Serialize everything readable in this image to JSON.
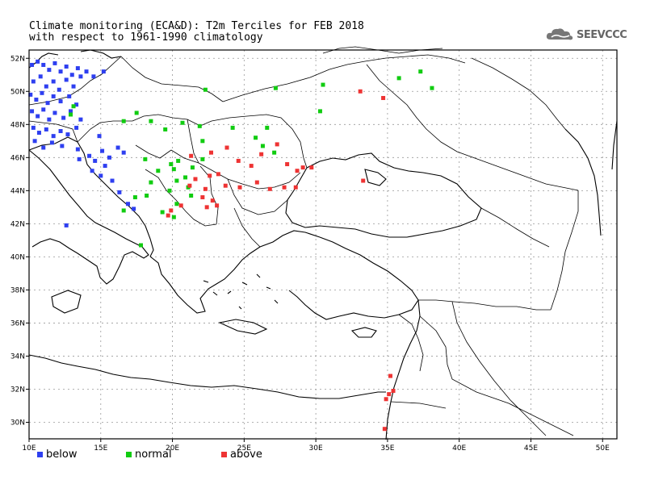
{
  "header": {
    "title_line1": "Climate monitoring (ECA&D): T2m Terciles for FEB 2018",
    "title_line2": "with respect to 1961-1990 climatology",
    "logo_text": "SEEVCCC",
    "logo_icon": "cloud-icon"
  },
  "axes": {
    "x_ticks": [
      "10E",
      "15E",
      "20E",
      "25E",
      "30E",
      "35E",
      "40E",
      "45E",
      "50E"
    ],
    "y_ticks": [
      "52N",
      "50N",
      "48N",
      "46N",
      "44N",
      "42N",
      "40N",
      "38N",
      "36N",
      "34N",
      "32N",
      "30N"
    ],
    "lon_range": [
      10,
      51
    ],
    "lat_range": [
      29,
      52.5
    ]
  },
  "legend": [
    {
      "label": "below",
      "color": "#2e3ff0"
    },
    {
      "label": "normal",
      "color": "#11cc11"
    },
    {
      "label": "above",
      "color": "#ee3333"
    }
  ],
  "chart_data": {
    "type": "map",
    "stations": {
      "below": [
        [
          10.2,
          51.6
        ],
        [
          10.6,
          51.8
        ],
        [
          11.0,
          51.6
        ],
        [
          11.4,
          51.3
        ],
        [
          11.8,
          51.7
        ],
        [
          12.2,
          51.2
        ],
        [
          12.6,
          51.5
        ],
        [
          13.0,
          51.0
        ],
        [
          13.4,
          51.4
        ],
        [
          14.0,
          51.2
        ],
        [
          14.5,
          50.9
        ],
        [
          15.2,
          51.2
        ],
        [
          10.3,
          50.6
        ],
        [
          10.8,
          50.9
        ],
        [
          11.2,
          50.3
        ],
        [
          11.7,
          50.6
        ],
        [
          12.1,
          50.1
        ],
        [
          12.6,
          50.7
        ],
        [
          13.1,
          50.3
        ],
        [
          13.6,
          50.9
        ],
        [
          10.1,
          49.8
        ],
        [
          10.5,
          49.5
        ],
        [
          10.9,
          49.9
        ],
        [
          11.3,
          49.3
        ],
        [
          11.7,
          49.7
        ],
        [
          12.2,
          49.4
        ],
        [
          12.8,
          49.7
        ],
        [
          13.3,
          49.2
        ],
        [
          10.2,
          48.8
        ],
        [
          10.6,
          48.5
        ],
        [
          11.0,
          48.9
        ],
        [
          11.4,
          48.3
        ],
        [
          11.8,
          48.7
        ],
        [
          12.4,
          48.4
        ],
        [
          12.9,
          48.8
        ],
        [
          13.6,
          48.3
        ],
        [
          10.3,
          47.8
        ],
        [
          10.7,
          47.5
        ],
        [
          11.2,
          47.7
        ],
        [
          11.7,
          47.3
        ],
        [
          12.2,
          47.6
        ],
        [
          12.7,
          47.4
        ],
        [
          13.3,
          47.8
        ],
        [
          10.4,
          47.0
        ],
        [
          11.0,
          46.6
        ],
        [
          11.6,
          46.9
        ],
        [
          12.3,
          46.7
        ],
        [
          14.2,
          46.1
        ],
        [
          14.6,
          45.8
        ],
        [
          15.1,
          46.4
        ],
        [
          15.6,
          46.0
        ],
        [
          16.2,
          46.6
        ],
        [
          16.6,
          46.3
        ],
        [
          15.3,
          45.5
        ],
        [
          14.4,
          45.2
        ],
        [
          15.0,
          44.9
        ],
        [
          15.8,
          44.6
        ],
        [
          16.3,
          43.9
        ],
        [
          16.9,
          43.2
        ],
        [
          17.3,
          42.9
        ],
        [
          13.5,
          45.9
        ],
        [
          12.6,
          41.9
        ],
        [
          14.9,
          47.3
        ],
        [
          13.4,
          46.5
        ]
      ],
      "normal": [
        [
          12.9,
          48.6
        ],
        [
          13.1,
          49.1
        ],
        [
          16.6,
          48.2
        ],
        [
          17.5,
          48.7
        ],
        [
          18.5,
          48.2
        ],
        [
          19.5,
          47.7
        ],
        [
          20.7,
          48.1
        ],
        [
          21.9,
          47.9
        ],
        [
          22.1,
          47.0
        ],
        [
          24.2,
          47.8
        ],
        [
          25.8,
          47.2
        ],
        [
          26.6,
          47.8
        ],
        [
          26.3,
          46.7
        ],
        [
          27.1,
          46.3
        ],
        [
          22.3,
          50.1
        ],
        [
          27.2,
          50.2
        ],
        [
          30.5,
          50.4
        ],
        [
          30.3,
          48.8
        ],
        [
          35.8,
          50.8
        ],
        [
          37.3,
          51.2
        ],
        [
          38.1,
          50.2
        ],
        [
          18.1,
          45.9
        ],
        [
          19.0,
          45.2
        ],
        [
          19.9,
          45.6
        ],
        [
          20.4,
          45.8
        ],
        [
          21.4,
          45.4
        ],
        [
          22.1,
          45.9
        ],
        [
          20.1,
          45.3
        ],
        [
          20.9,
          44.8
        ],
        [
          21.1,
          44.2
        ],
        [
          20.3,
          44.6
        ],
        [
          19.8,
          44.0
        ],
        [
          18.5,
          44.5
        ],
        [
          17.4,
          43.6
        ],
        [
          18.2,
          43.7
        ],
        [
          19.3,
          42.7
        ],
        [
          20.1,
          42.4
        ],
        [
          20.3,
          43.2
        ],
        [
          16.6,
          42.8
        ],
        [
          17.8,
          40.7
        ],
        [
          21.3,
          43.7
        ]
      ],
      "above": [
        [
          33.1,
          50.0
        ],
        [
          34.7,
          49.6
        ],
        [
          21.3,
          46.1
        ],
        [
          22.7,
          46.3
        ],
        [
          23.8,
          46.6
        ],
        [
          24.6,
          45.8
        ],
        [
          25.5,
          45.5
        ],
        [
          26.2,
          46.2
        ],
        [
          27.3,
          46.8
        ],
        [
          28.0,
          45.6
        ],
        [
          28.7,
          45.2
        ],
        [
          29.1,
          45.4
        ],
        [
          25.9,
          44.5
        ],
        [
          27.8,
          44.2
        ],
        [
          28.6,
          44.2
        ],
        [
          21.6,
          44.7
        ],
        [
          22.6,
          44.9
        ],
        [
          23.2,
          45.0
        ],
        [
          23.7,
          44.3
        ],
        [
          24.7,
          44.2
        ],
        [
          26.8,
          44.1
        ],
        [
          21.2,
          44.3
        ],
        [
          22.3,
          44.1
        ],
        [
          22.1,
          43.6
        ],
        [
          22.8,
          43.4
        ],
        [
          23.1,
          43.1
        ],
        [
          22.4,
          43.0
        ],
        [
          20.6,
          43.1
        ],
        [
          19.7,
          42.5
        ],
        [
          19.9,
          42.8
        ],
        [
          29.7,
          45.4
        ],
        [
          33.3,
          44.6
        ],
        [
          35.2,
          32.8
        ],
        [
          35.4,
          31.9
        ],
        [
          35.1,
          31.7
        ],
        [
          34.9,
          31.4
        ],
        [
          34.8,
          29.6
        ]
      ]
    }
  }
}
